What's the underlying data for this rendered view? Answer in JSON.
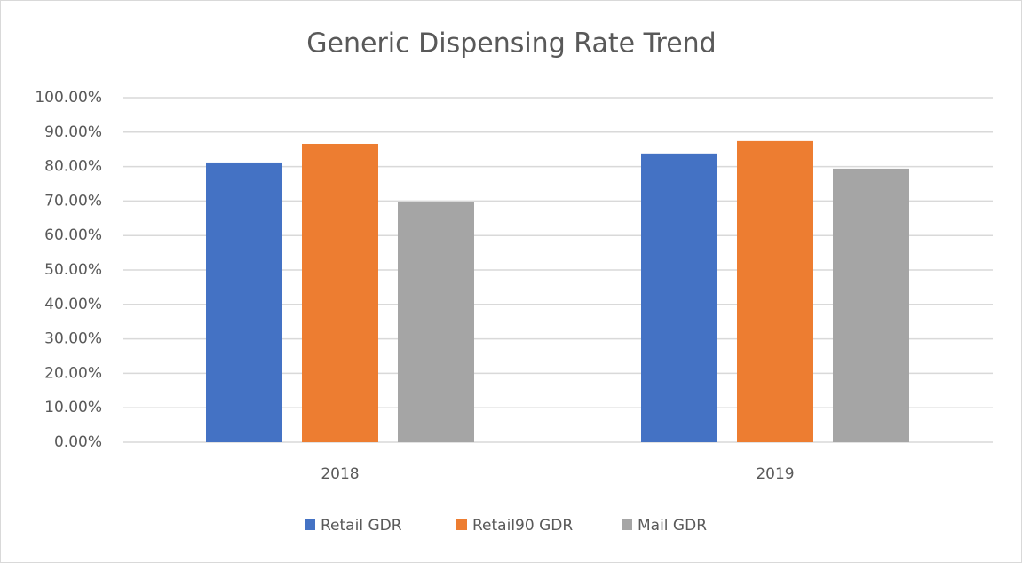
{
  "chart_data": {
    "type": "bar",
    "title": "Generic Dispensing Rate Trend",
    "categories": [
      "2018",
      "2019"
    ],
    "series": [
      {
        "name": "Retail GDR",
        "color": "#4472c4",
        "values": [
          81.2,
          83.8
        ]
      },
      {
        "name": "Retail90 GDR",
        "color": "#ed7d31",
        "values": [
          86.6,
          87.4
        ]
      },
      {
        "name": "Mail GDR",
        "color": "#a5a5a5",
        "values": [
          69.8,
          79.4
        ]
      }
    ],
    "ylim": [
      0,
      100
    ],
    "yticks": [
      {
        "value": 0,
        "label": "0.00%"
      },
      {
        "value": 10,
        "label": "10.00%"
      },
      {
        "value": 20,
        "label": "20.00%"
      },
      {
        "value": 30,
        "label": "30.00%"
      },
      {
        "value": 40,
        "label": "40.00%"
      },
      {
        "value": 50,
        "label": "50.00%"
      },
      {
        "value": 60,
        "label": "60.00%"
      },
      {
        "value": 70,
        "label": "70.00%"
      },
      {
        "value": 80,
        "label": "80.00%"
      },
      {
        "value": 90,
        "label": "90.00%"
      },
      {
        "value": 100,
        "label": "100.00%"
      }
    ],
    "grid": true,
    "legend": "bottom"
  }
}
